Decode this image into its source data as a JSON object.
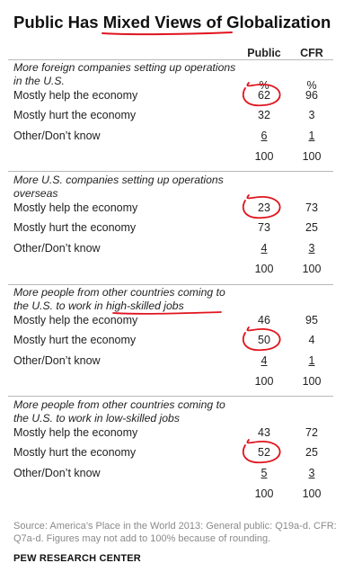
{
  "chart_data": {
    "type": "table",
    "title": "Public Has Mixed Views of Globalization",
    "columns": [
      "Public",
      "CFR"
    ],
    "unit_label": [
      "%",
      "%"
    ],
    "groups": [
      {
        "question": "More foreign companies setting up operations in the U.S.",
        "rows": [
          {
            "label": "Mostly help the economy",
            "public": "62",
            "cfr": "96"
          },
          {
            "label": "Mostly hurt the economy",
            "public": "32",
            "cfr": "3"
          },
          {
            "label": "Other/Don’t know",
            "public": "6",
            "cfr": "1"
          }
        ],
        "total": {
          "public": "100",
          "cfr": "100"
        }
      },
      {
        "question": "More U.S. companies setting up operations overseas",
        "rows": [
          {
            "label": "Mostly help the economy",
            "public": "23",
            "cfr": "73"
          },
          {
            "label": "Mostly hurt the economy",
            "public": "73",
            "cfr": "25"
          },
          {
            "label": "Other/Don’t know",
            "public": "4",
            "cfr": "3"
          }
        ],
        "total": {
          "public": "100",
          "cfr": "100"
        }
      },
      {
        "question": "More people from other countries coming to the U.S. to work in high-skilled jobs",
        "rows": [
          {
            "label": "Mostly help the economy",
            "public": "46",
            "cfr": "95"
          },
          {
            "label": "Mostly hurt the economy",
            "public": "50",
            "cfr": "4"
          },
          {
            "label": "Other/Don’t know",
            "public": "4",
            "cfr": "1"
          }
        ],
        "total": {
          "public": "100",
          "cfr": "100"
        }
      },
      {
        "question": "More people from other countries coming to the U.S. to work in low-skilled jobs",
        "rows": [
          {
            "label": "Mostly help the economy",
            "public": "43",
            "cfr": "72"
          },
          {
            "label": "Mostly hurt the economy",
            "public": "52",
            "cfr": "25"
          },
          {
            "label": "Other/Don’t know",
            "public": "5",
            "cfr": "3"
          }
        ],
        "total": {
          "public": "100",
          "cfr": "100"
        }
      }
    ],
    "circled_values": [
      "62",
      "23",
      "50",
      "52"
    ],
    "annotation_color": "#e0141e"
  },
  "source": "Source: America’s Place in the World 2013: General public: Q19a-d. CFR: Q7a-d.  Figures may not add to 100% because of rounding.",
  "credit": "PEW RESEARCH CENTER"
}
